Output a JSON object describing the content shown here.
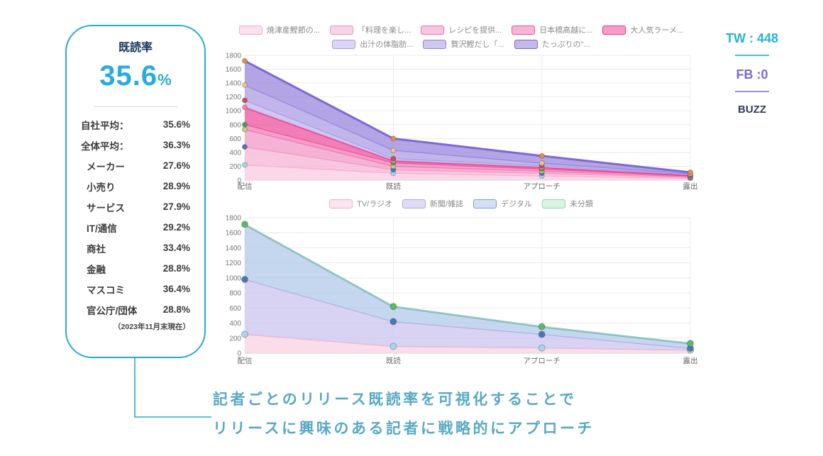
{
  "panel": {
    "title": "既読率",
    "big_value": "35.6",
    "big_unit": "%",
    "rows": [
      {
        "label": "自社平均：",
        "value": "35.6%",
        "indent": false
      },
      {
        "label": "全体平均：",
        "value": "36.3%",
        "indent": false
      },
      {
        "label": "メーカー",
        "value": "27.6%",
        "indent": true
      },
      {
        "label": "小売り",
        "value": "28.9%",
        "indent": true
      },
      {
        "label": "サービス",
        "value": "27.9%",
        "indent": true
      },
      {
        "label": "IT/通信",
        "value": "29.2%",
        "indent": true
      },
      {
        "label": "商社",
        "value": "33.4%",
        "indent": true
      },
      {
        "label": "金融",
        "value": "28.8%",
        "indent": true
      },
      {
        "label": "マスコミ",
        "value": "36.4%",
        "indent": true
      },
      {
        "label": "官公庁/団体",
        "value": "28.8%",
        "indent": true
      }
    ],
    "footnote": "（2023年11月末現在）",
    "border_color": "#2ba9cb",
    "accent_color": "#29abe2"
  },
  "chart_data": [
    {
      "type": "area",
      "stacked": true,
      "title": "",
      "xlabel": "",
      "ylabel": "",
      "categories": [
        "配信",
        "既読",
        "アプローチ",
        "露出"
      ],
      "ylim": [
        0,
        1800
      ],
      "ytick_step": 200,
      "grid": true,
      "legend_position": "top",
      "legend_rows": [
        [
          0,
          1,
          2,
          3,
          4
        ],
        [
          5,
          6,
          7
        ]
      ],
      "series": [
        {
          "name": "焼津産鰹節の...",
          "tops": [
            220,
            100,
            60,
            25
          ],
          "fill": "#f9cde3",
          "stroke": "#f2aacf",
          "sw": 1.3,
          "marker": "#a9d4ea"
        },
        {
          "name": "「料理を楽し...",
          "tops": [
            480,
            150,
            100,
            38
          ],
          "fill": "#f6b7d6",
          "stroke": "#f090c0",
          "sw": 1.3,
          "marker": "#4a77b7"
        },
        {
          "name": "レシピを提供...",
          "tops": [
            730,
            200,
            130,
            50
          ],
          "fill": "#f49cc8",
          "stroke": "#ee6fad",
          "sw": 1.3,
          "marker": "#b4d583"
        },
        {
          "name": "日本橋高越に...",
          "tops": [
            800,
            250,
            160,
            60
          ],
          "fill": "#f184ba",
          "stroke": "#eb4d98",
          "sw": 1.3,
          "marker": "#4f9f53"
        },
        {
          "name": "大人気ラーメ...",
          "tops": [
            1050,
            280,
            185,
            70
          ],
          "fill": "#ee5aa3",
          "stroke": "#e8338c",
          "sw": 2.2,
          "marker": "#ed86ae"
        },
        {
          "name": "出汁の体脂肪...",
          "tops": [
            1150,
            310,
            210,
            80
          ],
          "fill": "#c3b8ec",
          "stroke": "#a99ae4",
          "sw": 1.3,
          "marker": "#cf4b52"
        },
        {
          "name": "贅沢鰹だし「...",
          "tops": [
            1370,
            430,
            245,
            92
          ],
          "fill": "#b0a2e6",
          "stroke": "#937fdc",
          "sw": 1.3,
          "marker": "#f4c287"
        },
        {
          "name": "たっぷりの\"...",
          "tops": [
            1720,
            600,
            350,
            112
          ],
          "fill": "#9c8ade",
          "stroke": "#7a63d2",
          "sw": 3,
          "marker": "#ee8a47"
        }
      ]
    },
    {
      "type": "area",
      "stacked": true,
      "title": "",
      "xlabel": "",
      "ylabel": "",
      "categories": [
        "配信",
        "既読",
        "アプローチ",
        "露出"
      ],
      "ylim": [
        0,
        1800
      ],
      "ytick_step": 200,
      "grid": true,
      "legend_position": "top",
      "legend_rows": [
        [
          0,
          1,
          2,
          3
        ]
      ],
      "series": [
        {
          "name": "TV/ラジオ",
          "tops": [
            250,
            90,
            70,
            40
          ],
          "fill": "#f8d3e2",
          "stroke": "#f2b1cd",
          "sw": 1.5,
          "marker": "#a9d4ea"
        },
        {
          "name": "新聞/雑誌",
          "tops": [
            980,
            420,
            250,
            65
          ],
          "fill": "#cdc5ef",
          "stroke": "#b2a5e6",
          "sw": 1.5,
          "marker": "#4a77b7"
        },
        {
          "name": "デジタル",
          "tops": [
            1710,
            618,
            350,
            128
          ],
          "fill": "#b5cce9",
          "stroke": "#7b9cd4",
          "sw": 2.5,
          "marker": null
        },
        {
          "name": "未分類",
          "tops": [
            1712,
            620,
            352,
            130
          ],
          "fill": "#bfeccf",
          "stroke": "#8fd8ae",
          "sw": 1.5,
          "marker": "#5cb86a"
        }
      ]
    }
  ],
  "side_stats": [
    {
      "label": "TW : 448",
      "color": "#29b3d6",
      "font_size": "18px",
      "underline": true,
      "rule_color": "#3ec1dd"
    },
    {
      "label": "FB :0",
      "color": "#7b6ad6",
      "font_size": "18px",
      "underline": true,
      "rule_color": "#9a8ce0"
    },
    {
      "label": "BUZZ",
      "color": "#2b3f5c",
      "font_size": "15px",
      "underline": false,
      "rule_color": ""
    }
  ],
  "caption": {
    "line1": "記者ごとのリリース既読率を可視化することで",
    "line2": "リリースに興味のある記者に戦略的にアプローチ",
    "color": "#58a9c2"
  },
  "connector_color": "#2ba9cb"
}
